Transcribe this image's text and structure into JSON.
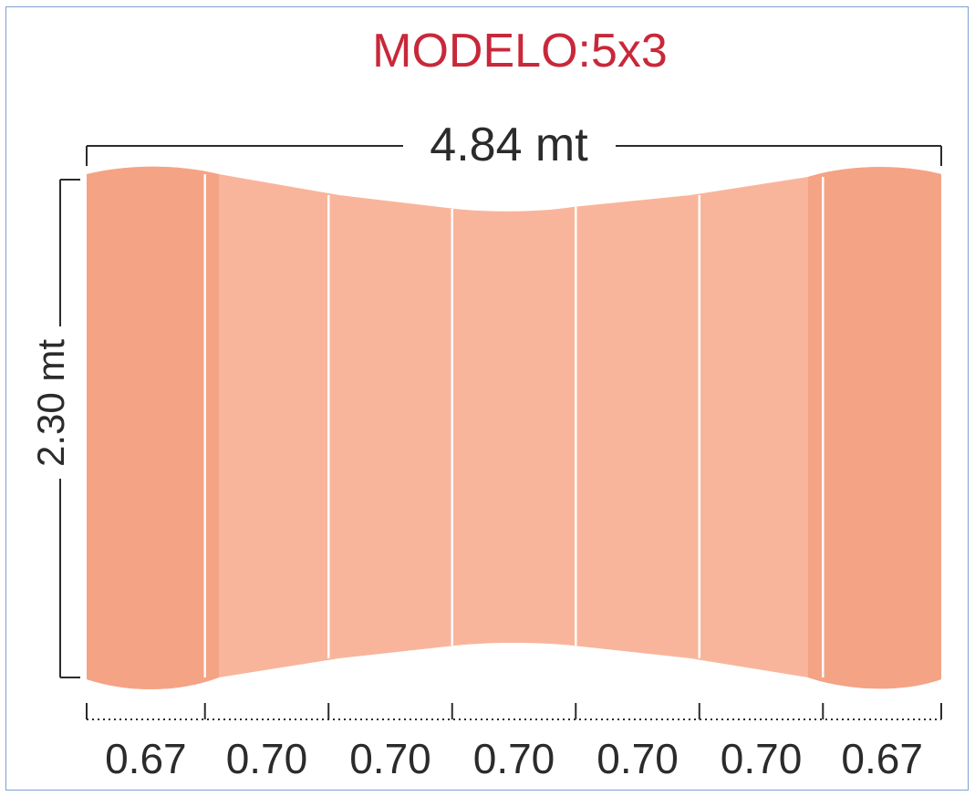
{
  "title": "MODELO:5x3",
  "total_width_label": "4.84 mt",
  "height_label": "2.30 mt",
  "segments": [
    {
      "label": "0.67",
      "width": 0.67
    },
    {
      "label": "0.70",
      "width": 0.7
    },
    {
      "label": "0.70",
      "width": 0.7
    },
    {
      "label": "0.70",
      "width": 0.7
    },
    {
      "label": "0.70",
      "width": 0.7
    },
    {
      "label": "0.70",
      "width": 0.7
    },
    {
      "label": "0.67",
      "width": 0.67
    }
  ],
  "colors": {
    "title": "#c8283a",
    "outer_panel": "#f4a385",
    "inner_panel": "#f9b59b",
    "divider": "#ffffff",
    "dimension_line": "#2b2b2b"
  }
}
